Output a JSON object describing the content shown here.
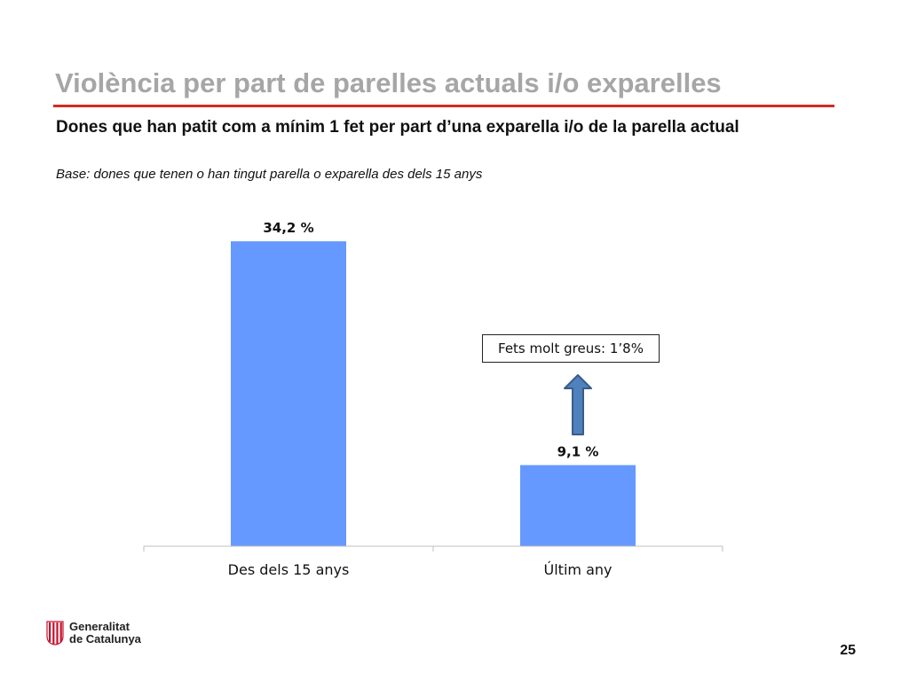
{
  "slide": {
    "title": "Violència per part de parelles actuals i/o exparelles",
    "subtitle": "Dones que han patit com a mínim 1 fet per part d’una exparella i/o de la parella actual",
    "base_note": "Base: dones que tenen o  han tingut parella o exparella des dels 15 anys",
    "callout": "Fets molt greus: 1’8%",
    "logo_line1": "Generalitat",
    "logo_line2": "de Catalunya",
    "page_number": "25"
  },
  "colors": {
    "title": "#a6a6a6",
    "title_rule": "#d42a20",
    "bar": "#6699ff",
    "arrow_fill": "#4f81bd",
    "arrow_stroke": "#385d8a"
  },
  "chart_data": {
    "type": "bar",
    "categories": [
      "Des dels 15 anys",
      "Últim any"
    ],
    "values": [
      34.2,
      9.1
    ],
    "data_labels": [
      "34,2 %",
      "9,1 %"
    ],
    "title": "",
    "xlabel": "",
    "ylabel": "",
    "ylim": [
      0,
      36
    ],
    "grid": false
  }
}
